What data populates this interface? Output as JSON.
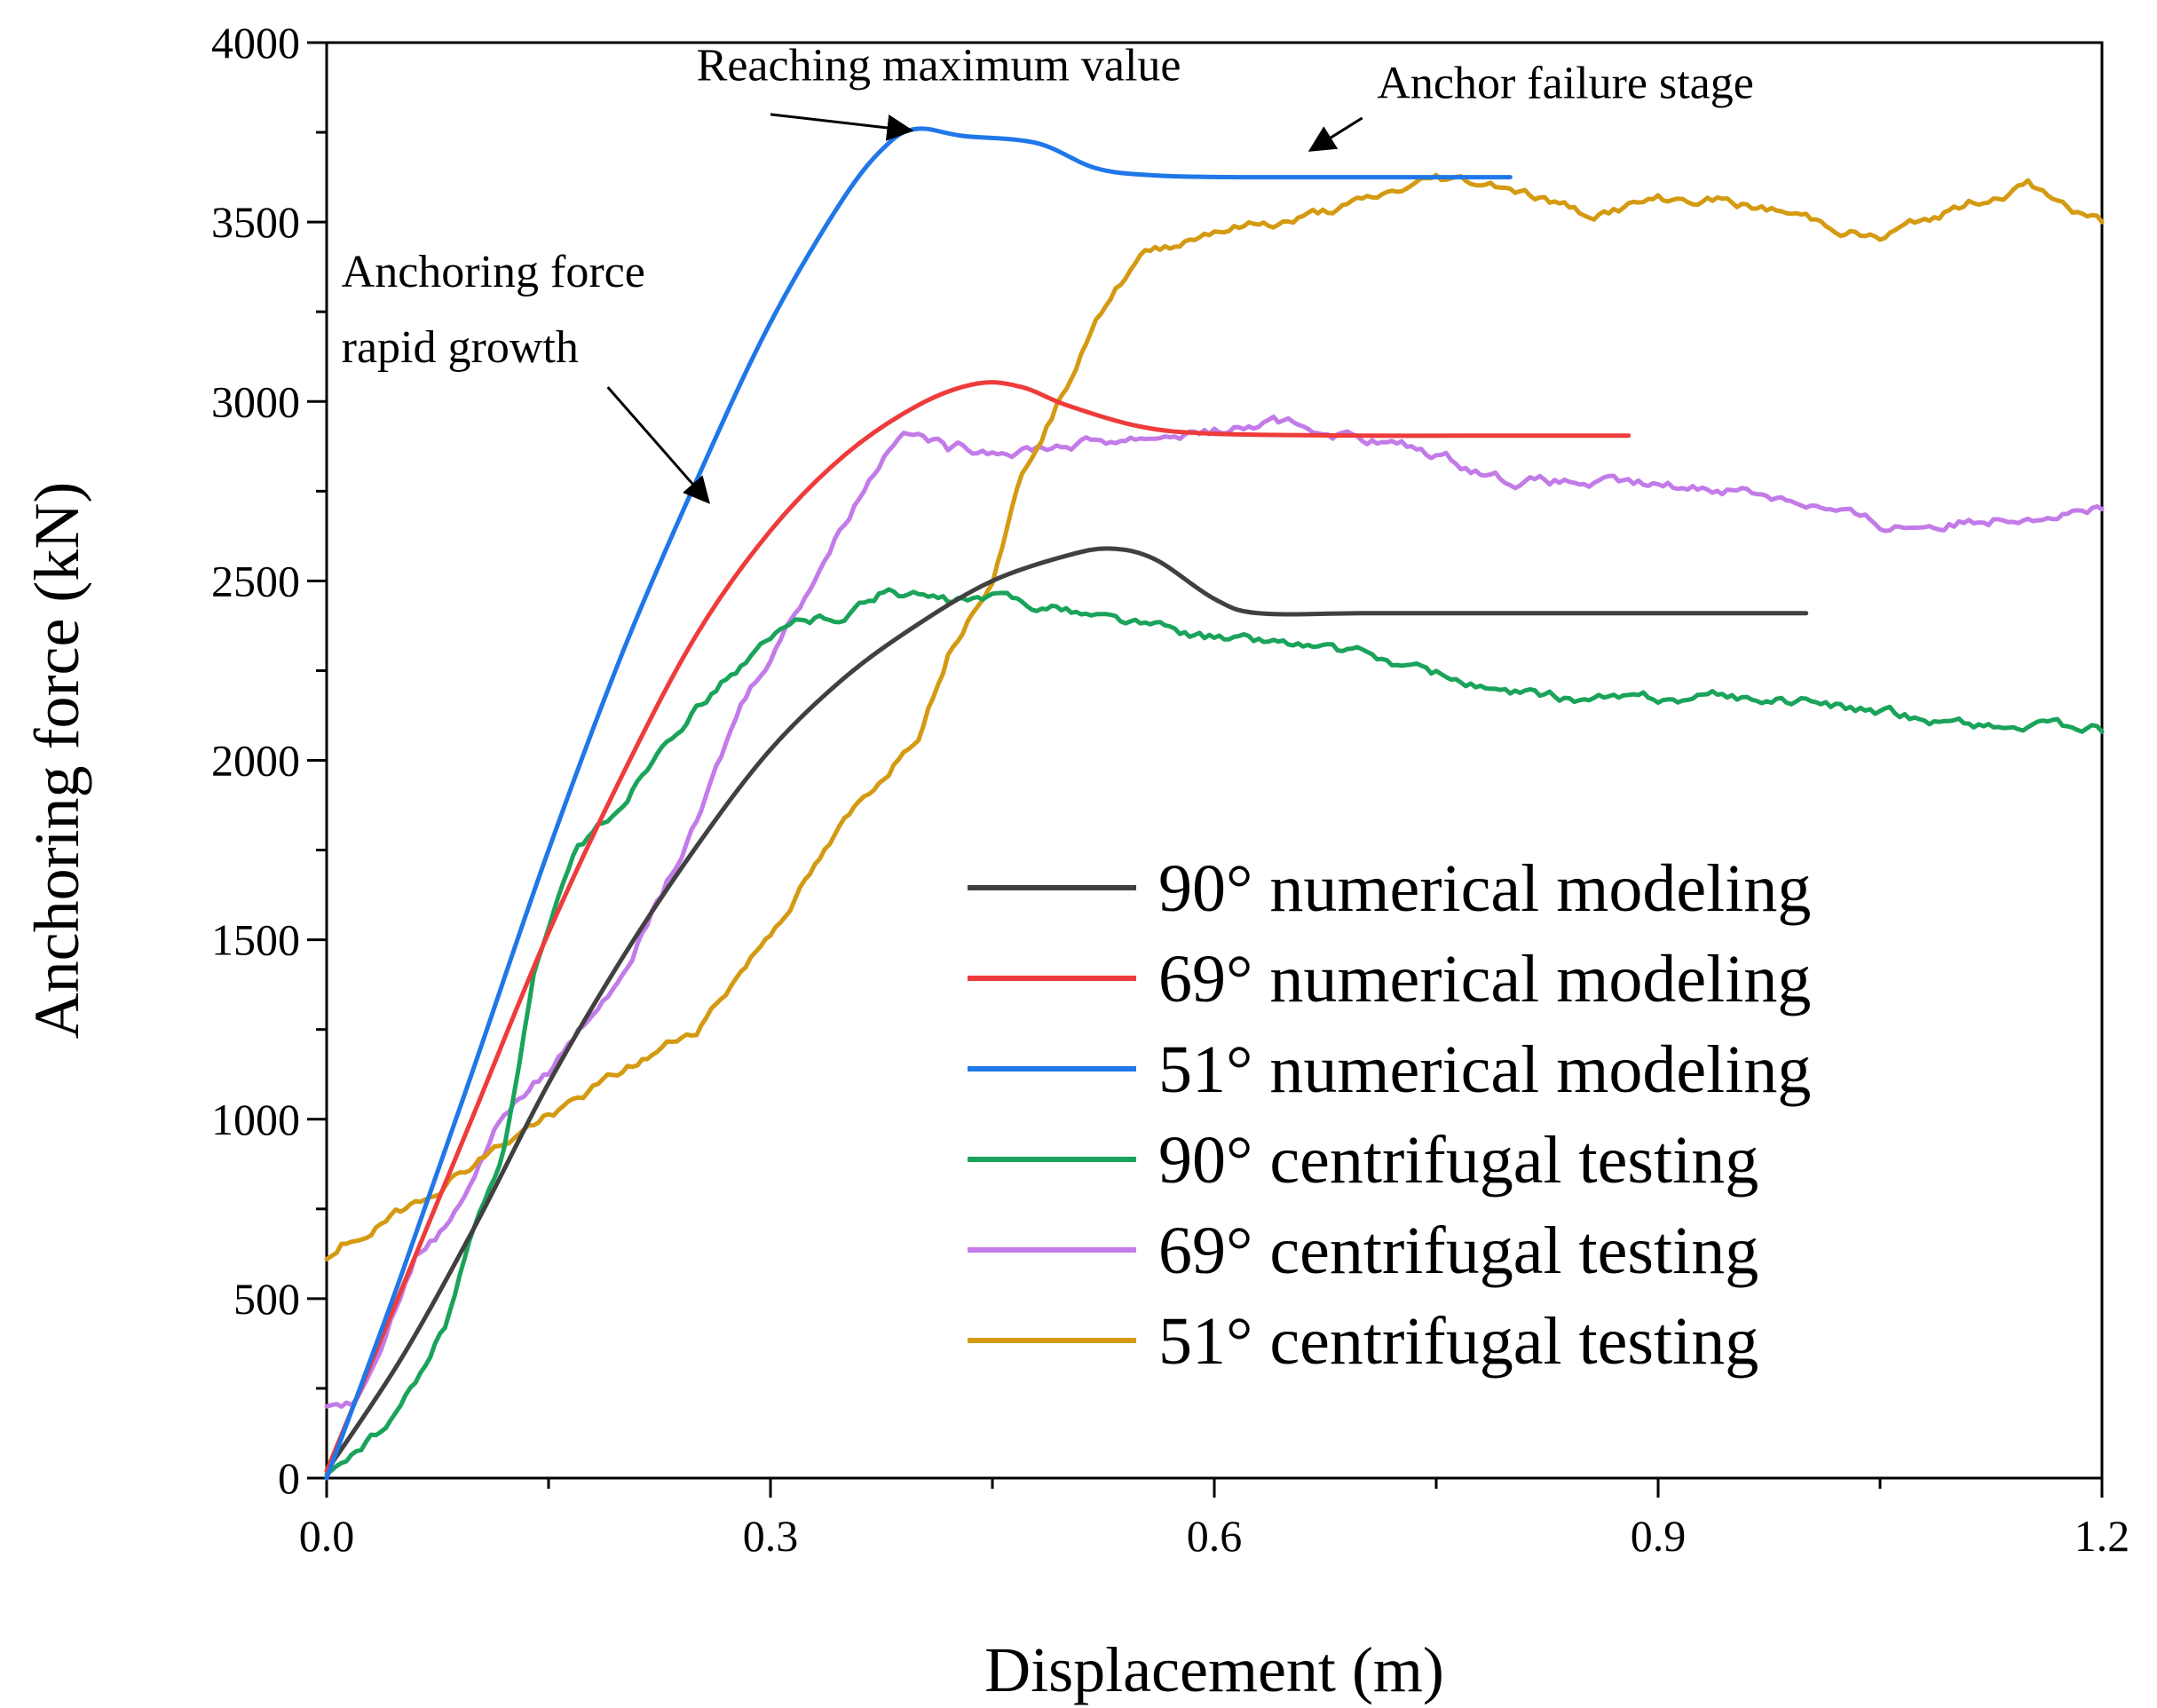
{
  "chart_data": {
    "type": "line",
    "xlabel": "Displacement (m)",
    "ylabel": "Anchoring force (kN)",
    "xlim": [
      0,
      1.2
    ],
    "ylim": [
      0,
      4000
    ],
    "x_ticks": [
      "0.0",
      "0.3",
      "0.6",
      "0.9",
      "1.2"
    ],
    "y_ticks": [
      "0",
      "500",
      "1000",
      "1500",
      "2000",
      "2500",
      "3000",
      "3500",
      "4000"
    ],
    "grid": false,
    "legend_position": "bottom-right",
    "series": [
      {
        "name": "90° numerical modeling",
        "color": "#404040",
        "noise": 0,
        "points": [
          [
            0,
            20
          ],
          [
            0.05,
            330
          ],
          [
            0.1,
            700
          ],
          [
            0.15,
            1100
          ],
          [
            0.2,
            1450
          ],
          [
            0.25,
            1760
          ],
          [
            0.3,
            2030
          ],
          [
            0.35,
            2230
          ],
          [
            0.4,
            2380
          ],
          [
            0.45,
            2500
          ],
          [
            0.5,
            2570
          ],
          [
            0.53,
            2590
          ],
          [
            0.56,
            2560
          ],
          [
            0.6,
            2450
          ],
          [
            0.63,
            2410
          ],
          [
            0.7,
            2410
          ],
          [
            0.8,
            2410
          ],
          [
            0.9,
            2410
          ],
          [
            1.0,
            2410
          ]
        ]
      },
      {
        "name": "69° numerical modeling",
        "color": "#ee3b3b",
        "noise": 0,
        "points": [
          [
            0,
            20
          ],
          [
            0.05,
            520
          ],
          [
            0.1,
            1020
          ],
          [
            0.15,
            1520
          ],
          [
            0.2,
            1960
          ],
          [
            0.25,
            2350
          ],
          [
            0.3,
            2640
          ],
          [
            0.35,
            2850
          ],
          [
            0.4,
            2990
          ],
          [
            0.44,
            3050
          ],
          [
            0.47,
            3040
          ],
          [
            0.5,
            2990
          ],
          [
            0.55,
            2930
          ],
          [
            0.6,
            2910
          ],
          [
            0.7,
            2905
          ],
          [
            0.8,
            2905
          ],
          [
            0.88,
            2905
          ]
        ]
      },
      {
        "name": "51° numerical modeling",
        "color": "#1f77e8",
        "noise": 0,
        "points": [
          [
            0,
            0
          ],
          [
            0.05,
            560
          ],
          [
            0.1,
            1150
          ],
          [
            0.15,
            1750
          ],
          [
            0.2,
            2300
          ],
          [
            0.25,
            2780
          ],
          [
            0.3,
            3220
          ],
          [
            0.35,
            3570
          ],
          [
            0.38,
            3720
          ],
          [
            0.4,
            3760
          ],
          [
            0.43,
            3740
          ],
          [
            0.48,
            3720
          ],
          [
            0.52,
            3650
          ],
          [
            0.56,
            3630
          ],
          [
            0.62,
            3625
          ],
          [
            0.7,
            3625
          ],
          [
            0.8,
            3625
          ]
        ]
      },
      {
        "name": "90° centrifugal testing",
        "color": "#1aa35a",
        "noise": 22,
        "points": [
          [
            0,
            10
          ],
          [
            0.02,
            80
          ],
          [
            0.04,
            140
          ],
          [
            0.06,
            260
          ],
          [
            0.08,
            420
          ],
          [
            0.1,
            700
          ],
          [
            0.12,
            920
          ],
          [
            0.14,
            1400
          ],
          [
            0.17,
            1750
          ],
          [
            0.2,
            1880
          ],
          [
            0.23,
            2070
          ],
          [
            0.26,
            2190
          ],
          [
            0.29,
            2300
          ],
          [
            0.32,
            2390
          ],
          [
            0.35,
            2410
          ],
          [
            0.38,
            2480
          ],
          [
            0.42,
            2440
          ],
          [
            0.46,
            2450
          ],
          [
            0.5,
            2420
          ],
          [
            0.55,
            2380
          ],
          [
            0.6,
            2340
          ],
          [
            0.65,
            2330
          ],
          [
            0.7,
            2290
          ],
          [
            0.75,
            2240
          ],
          [
            0.8,
            2180
          ],
          [
            0.85,
            2170
          ],
          [
            0.9,
            2170
          ],
          [
            0.95,
            2180
          ],
          [
            1.0,
            2160
          ],
          [
            1.05,
            2130
          ],
          [
            1.1,
            2110
          ],
          [
            1.15,
            2090
          ],
          [
            1.2,
            2080
          ]
        ]
      },
      {
        "name": "69° centrifugal testing",
        "color": "#c27be8",
        "noise": 24,
        "points": [
          [
            0,
            200
          ],
          [
            0.02,
            220
          ],
          [
            0.04,
            420
          ],
          [
            0.06,
            620
          ],
          [
            0.08,
            700
          ],
          [
            0.1,
            850
          ],
          [
            0.12,
            1020
          ],
          [
            0.15,
            1130
          ],
          [
            0.2,
            1420
          ],
          [
            0.25,
            1820
          ],
          [
            0.28,
            2150
          ],
          [
            0.32,
            2440
          ],
          [
            0.36,
            2740
          ],
          [
            0.39,
            2940
          ],
          [
            0.42,
            2870
          ],
          [
            0.46,
            2870
          ],
          [
            0.5,
            2880
          ],
          [
            0.55,
            2900
          ],
          [
            0.6,
            2920
          ],
          [
            0.65,
            2940
          ],
          [
            0.7,
            2900
          ],
          [
            0.75,
            2850
          ],
          [
            0.8,
            2780
          ],
          [
            0.85,
            2770
          ],
          [
            0.9,
            2760
          ],
          [
            0.95,
            2760
          ],
          [
            1.0,
            2720
          ],
          [
            1.05,
            2650
          ],
          [
            1.1,
            2660
          ],
          [
            1.15,
            2690
          ],
          [
            1.2,
            2700
          ]
        ]
      },
      {
        "name": "51° centrifugal testing",
        "color": "#d49a12",
        "noise": 22,
        "points": [
          [
            0,
            610
          ],
          [
            0.05,
            740
          ],
          [
            0.1,
            880
          ],
          [
            0.15,
            1010
          ],
          [
            0.2,
            1130
          ],
          [
            0.25,
            1250
          ],
          [
            0.3,
            1520
          ],
          [
            0.35,
            1820
          ],
          [
            0.4,
            2080
          ],
          [
            0.42,
            2300
          ],
          [
            0.45,
            2520
          ],
          [
            0.47,
            2800
          ],
          [
            0.5,
            3050
          ],
          [
            0.52,
            3250
          ],
          [
            0.55,
            3400
          ],
          [
            0.6,
            3480
          ],
          [
            0.65,
            3500
          ],
          [
            0.7,
            3550
          ],
          [
            0.75,
            3620
          ],
          [
            0.8,
            3600
          ],
          [
            0.85,
            3520
          ],
          [
            0.9,
            3560
          ],
          [
            0.95,
            3560
          ],
          [
            1.0,
            3510
          ],
          [
            1.05,
            3450
          ],
          [
            1.1,
            3540
          ],
          [
            1.15,
            3600
          ],
          [
            1.2,
            3500
          ]
        ]
      }
    ],
    "annotations": [
      {
        "text": "Reaching maximum value",
        "at": [
          0.25,
          3895
        ],
        "arrow_from": [
          0.3,
          3800
        ],
        "arrow_to": [
          0.395,
          3755
        ]
      },
      {
        "text": "Anchor failure stage",
        "at": [
          0.71,
          3845
        ],
        "arrow_from": [
          0.7,
          3790
        ],
        "arrow_to": [
          0.665,
          3700
        ]
      },
      {
        "text": "Anchoring force",
        "at": [
          0.01,
          3320
        ],
        "arrow_from": null,
        "arrow_to": null
      },
      {
        "text": "rapid growth",
        "at": [
          0.01,
          3110
        ],
        "arrow_from": [
          0.19,
          3040
        ],
        "arrow_to": [
          0.258,
          2720
        ]
      }
    ]
  }
}
